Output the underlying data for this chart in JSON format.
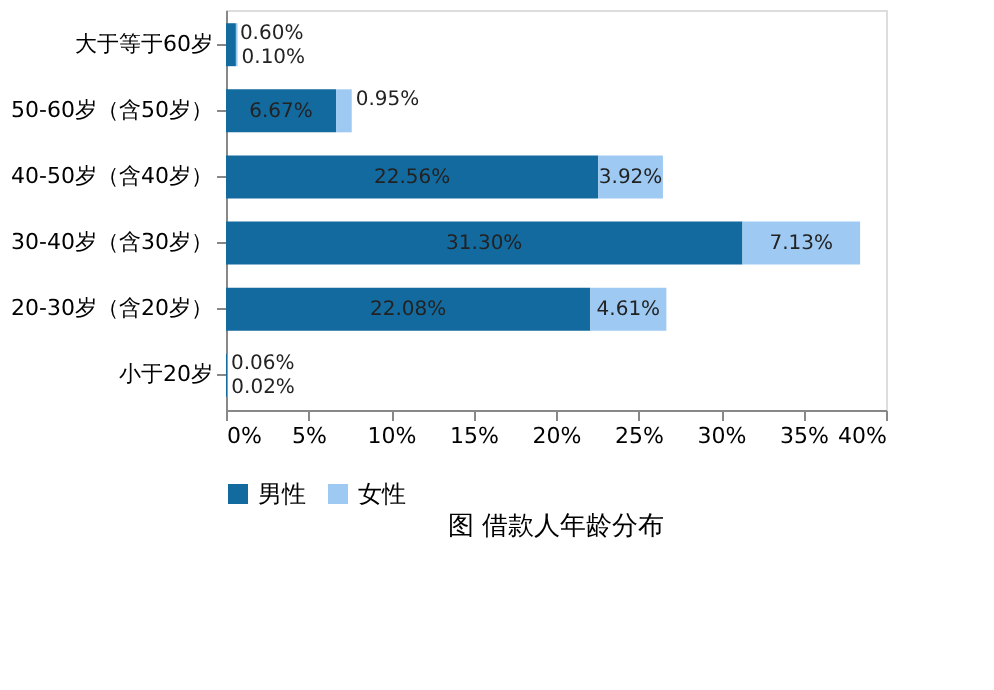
{
  "chart_data": {
    "type": "bar",
    "orientation": "horizontal",
    "stacked": true,
    "title": "图 借款人年龄分布",
    "categories": [
      "大于等于60岁",
      "50-60岁（含50岁）",
      "40-50岁（含40岁）",
      "30-40岁（含30岁）",
      "20-30岁（含20岁）",
      "小于20岁"
    ],
    "series": [
      {
        "name": "男性",
        "color": "#136a9f",
        "values": [
          0.6,
          6.67,
          22.56,
          31.3,
          22.08,
          0.06
        ],
        "value_labels": [
          "0.60%",
          "6.67%",
          "22.56%",
          "31.30%",
          "22.08%",
          "0.06%"
        ]
      },
      {
        "name": "女性",
        "color": "#9dc9f2",
        "values": [
          0.1,
          0.95,
          3.92,
          7.13,
          4.61,
          0.02
        ],
        "value_labels": [
          "0.10%",
          "0.95%",
          "3.92%",
          "7.13%",
          "4.61%",
          "0.02%"
        ]
      }
    ],
    "xlim": [
      0,
      40
    ],
    "xticks": [
      {
        "value": 0,
        "label": "0%"
      },
      {
        "value": 5,
        "label": "5%"
      },
      {
        "value": 10,
        "label": "10%"
      },
      {
        "value": 15,
        "label": "15%"
      },
      {
        "value": 20,
        "label": "20%"
      },
      {
        "value": 25,
        "label": "25%"
      },
      {
        "value": 30,
        "label": "30%"
      },
      {
        "value": 35,
        "label": "35%"
      },
      {
        "value": 40,
        "label": "40%"
      }
    ],
    "grid": false,
    "legend": "bottom"
  }
}
